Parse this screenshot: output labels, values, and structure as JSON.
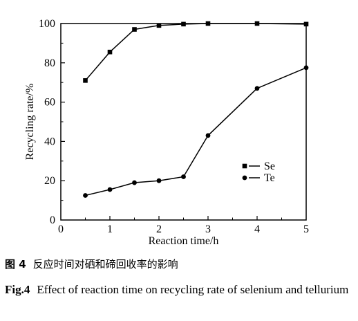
{
  "chart_data": {
    "type": "line",
    "xlabel": "Reaction time/h",
    "ylabel": "Recycling rate/%",
    "xlim": [
      0,
      5
    ],
    "ylim": [
      0,
      100
    ],
    "x_ticks": [
      "0",
      "1",
      "2",
      "3",
      "4",
      "5"
    ],
    "y_ticks": [
      "0",
      "20",
      "40",
      "60",
      "80",
      "100"
    ],
    "legend_position": "lower-right",
    "grid": false,
    "series": [
      {
        "name": "Se",
        "marker": "square",
        "x": [
          0.5,
          1,
          1.5,
          2,
          2.5,
          3,
          4,
          5
        ],
        "y": [
          71,
          85.5,
          97,
          99,
          99.7,
          100,
          100,
          99.7
        ]
      },
      {
        "name": "Te",
        "marker": "circle",
        "x": [
          0.5,
          1,
          1.5,
          2,
          2.5,
          3,
          4,
          5
        ],
        "y": [
          12.5,
          15.5,
          19,
          20,
          22,
          43,
          67,
          77.5
        ]
      }
    ]
  },
  "caption": {
    "cn_number": "图 4",
    "cn_text": "反应时间对硒和碲回收率的影响",
    "en_number": "Fig.4",
    "en_text": "Effect of reaction time on recycling rate of selenium and tellurium"
  }
}
